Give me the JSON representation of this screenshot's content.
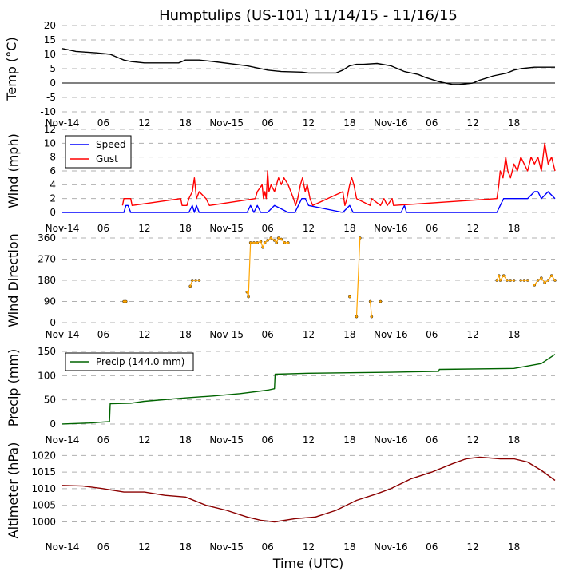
{
  "title": "Humptulips (US-101) 11/14/15 - 11/16/15",
  "xlabel": "Time (UTC)",
  "x_tick_labels": [
    "Nov-14",
    "06",
    "12",
    "18",
    "Nov-15",
    "06",
    "12",
    "18",
    "Nov-16",
    "06",
    "12",
    "18"
  ],
  "chart_data": [
    {
      "type": "line",
      "name": "temperature",
      "ylabel": "Temp (°C)",
      "ylim": [
        -10,
        20
      ],
      "yticks": [
        -10,
        -5,
        0,
        5,
        10,
        15,
        20
      ],
      "xlim_hours": [
        0,
        72
      ],
      "zero_line": true,
      "series": [
        {
          "name": "Temp",
          "color": "#000000",
          "x": [
            0,
            1,
            2,
            5,
            7,
            8,
            9,
            10,
            12,
            17,
            18,
            20,
            22,
            27,
            29,
            30,
            32,
            35,
            36,
            40,
            41,
            42,
            43,
            44,
            46,
            48,
            49,
            50,
            52,
            53,
            55,
            57,
            58,
            59,
            60,
            61,
            63,
            65,
            66,
            67,
            69,
            70,
            72
          ],
          "y": [
            12,
            11.5,
            11,
            10.5,
            10,
            9,
            8,
            7.5,
            7,
            7,
            8,
            8,
            7.5,
            6,
            5,
            4.5,
            4,
            3.8,
            3.5,
            3.5,
            4.5,
            6,
            6.5,
            6.5,
            6.8,
            6,
            5,
            4,
            3,
            2,
            0.5,
            -0.5,
            -0.5,
            -0.3,
            0,
            1,
            2.5,
            3.5,
            4.5,
            5,
            5.5,
            5.5,
            5.5
          ]
        }
      ]
    },
    {
      "type": "line",
      "name": "wind",
      "ylabel": "Wind (mph)",
      "ylim": [
        0,
        12
      ],
      "yticks": [
        0,
        2,
        4,
        6,
        8,
        10,
        12
      ],
      "xlim_hours": [
        0,
        72
      ],
      "legend": [
        {
          "label": "Speed",
          "color": "#0000ff"
        },
        {
          "label": "Gust",
          "color": "#ff0000"
        }
      ],
      "series": [
        {
          "name": "Speed",
          "color": "#0000ff",
          "x": [
            0,
            9,
            9.3,
            9.6,
            10,
            18.5,
            19,
            19.3,
            19.6,
            20,
            27,
            27.5,
            28,
            28.5,
            29,
            30,
            31,
            33,
            34,
            34.5,
            35,
            35.5,
            36,
            41,
            42,
            42.5,
            43,
            49.5,
            50,
            50.3,
            63.5,
            64,
            64.5,
            65,
            66,
            67,
            68,
            69,
            69.5,
            70,
            71,
            72
          ],
          "y": [
            0,
            0,
            1,
            1,
            0,
            0,
            1,
            0,
            1,
            0,
            0,
            1,
            0,
            1,
            0,
            0,
            1,
            0,
            0,
            1,
            2,
            2,
            1,
            0,
            1,
            0,
            0,
            0,
            1,
            0,
            0,
            1,
            2,
            2,
            2,
            2,
            2,
            3,
            3,
            2,
            3,
            2
          ]
        },
        {
          "name": "Gust",
          "color": "#ff0000",
          "x": [
            8.8,
            9,
            10,
            10.2,
            17.3,
            17.5,
            18.2,
            18.5,
            19,
            19.3,
            19.6,
            20,
            21,
            21.5,
            28.2,
            28.5,
            29.2,
            29.4,
            29.6,
            29.8,
            30,
            30.2,
            30.5,
            31,
            31.3,
            31.6,
            32,
            32.4,
            33,
            33.4,
            33.8,
            34.1,
            34.4,
            34.8,
            35.1,
            35.5,
            35.8,
            36.2,
            36.6,
            41,
            41.3,
            41.6,
            42,
            42.3,
            42.6,
            43,
            45,
            45.2,
            46.5,
            47,
            47.5,
            48.2,
            48.4,
            63.5,
            63.8,
            64,
            64.4,
            64.8,
            65.1,
            65.5,
            66,
            66.5,
            67,
            67.5,
            68,
            68.5,
            69,
            69.5,
            70,
            70.5,
            71,
            71.5,
            72
          ],
          "y": [
            1,
            2,
            2,
            1,
            2,
            1,
            1,
            2,
            3,
            5,
            2,
            3,
            2,
            1,
            2,
            3,
            4,
            2,
            3,
            2,
            6,
            3,
            4,
            3,
            4,
            5,
            4,
            5,
            4,
            3,
            2,
            1,
            2,
            4,
            5,
            3,
            4,
            2,
            1,
            3,
            1,
            2,
            4,
            5,
            4,
            2,
            1,
            2,
            1,
            2,
            1,
            2,
            1,
            2,
            4,
            6,
            5,
            8,
            6,
            5,
            7,
            6,
            8,
            7,
            6,
            8,
            7,
            8,
            6,
            10,
            7,
            8,
            6
          ]
        }
      ]
    },
    {
      "type": "scatter",
      "name": "wind-direction",
      "ylabel": "Wind Direction",
      "ylim": [
        0,
        360
      ],
      "yticks": [
        0,
        90,
        180,
        270,
        360
      ],
      "xlim_hours": [
        0,
        72
      ],
      "series": [
        {
          "name": "Direction",
          "color": "#ffa500",
          "x": [
            9,
            9.3,
            18.7,
            19,
            19.5,
            20,
            27,
            27.2,
            27.5,
            28,
            28.5,
            29,
            29.3,
            29.6,
            30,
            30.5,
            31,
            31.3,
            31.6,
            32,
            32.5,
            33,
            42,
            43,
            43.5,
            45,
            45.2,
            46.5,
            63.5,
            63.8,
            64,
            64.5,
            65,
            65.5,
            66,
            67,
            67.5,
            68,
            69,
            69.5,
            70,
            70.5,
            71,
            71.5,
            72
          ],
          "y": [
            90,
            90,
            155,
            180,
            180,
            180,
            130,
            110,
            340,
            340,
            340,
            345,
            320,
            340,
            350,
            360,
            350,
            340,
            360,
            355,
            340,
            340,
            110,
            25,
            360,
            90,
            25,
            90,
            180,
            200,
            180,
            200,
            180,
            180,
            180,
            180,
            180,
            180,
            160,
            180,
            190,
            170,
            180,
            200,
            180
          ]
        }
      ]
    },
    {
      "type": "line",
      "name": "precip",
      "ylabel": "Precip (mm)",
      "ylim": [
        -10,
        160
      ],
      "yticks": [
        0,
        50,
        100,
        150
      ],
      "xlim_hours": [
        0,
        72
      ],
      "legend": [
        {
          "label": "Precip (144.0 mm)",
          "color": "#006400"
        }
      ],
      "series": [
        {
          "name": "Precip",
          "color": "#006400",
          "x": [
            0,
            4,
            6.9,
            7,
            10,
            12,
            18,
            22,
            26,
            30,
            31,
            31.1,
            36,
            48,
            55,
            55.1,
            66,
            70,
            72
          ],
          "y": [
            0,
            2,
            5,
            42,
            43,
            47,
            54,
            58,
            63,
            70,
            73,
            103,
            105,
            107,
            109,
            113,
            115,
            125,
            144
          ]
        }
      ]
    },
    {
      "type": "line",
      "name": "altimeter",
      "ylabel": "Altimeter (hPa)",
      "ylim": [
        997,
        1022
      ],
      "yticks": [
        1000,
        1005,
        1010,
        1015,
        1020
      ],
      "xlim_hours": [
        0,
        72
      ],
      "series": [
        {
          "name": "Altimeter",
          "color": "#8b0000",
          "x": [
            0,
            3,
            6,
            9,
            12,
            15,
            18,
            21,
            24,
            27,
            29,
            31,
            34,
            37,
            40,
            43,
            46,
            48,
            51,
            54,
            57,
            59,
            61,
            64,
            66,
            68,
            70,
            72
          ],
          "y": [
            1011,
            1010.8,
            1010,
            1009,
            1009,
            1008,
            1007.5,
            1005,
            1003.5,
            1001.5,
            1000.5,
            1000,
            1001,
            1001.5,
            1003.5,
            1006.5,
            1008.5,
            1010,
            1013,
            1015,
            1017.5,
            1019,
            1019.5,
            1019,
            1019,
            1018,
            1015.5,
            1012.5
          ]
        }
      ]
    }
  ]
}
